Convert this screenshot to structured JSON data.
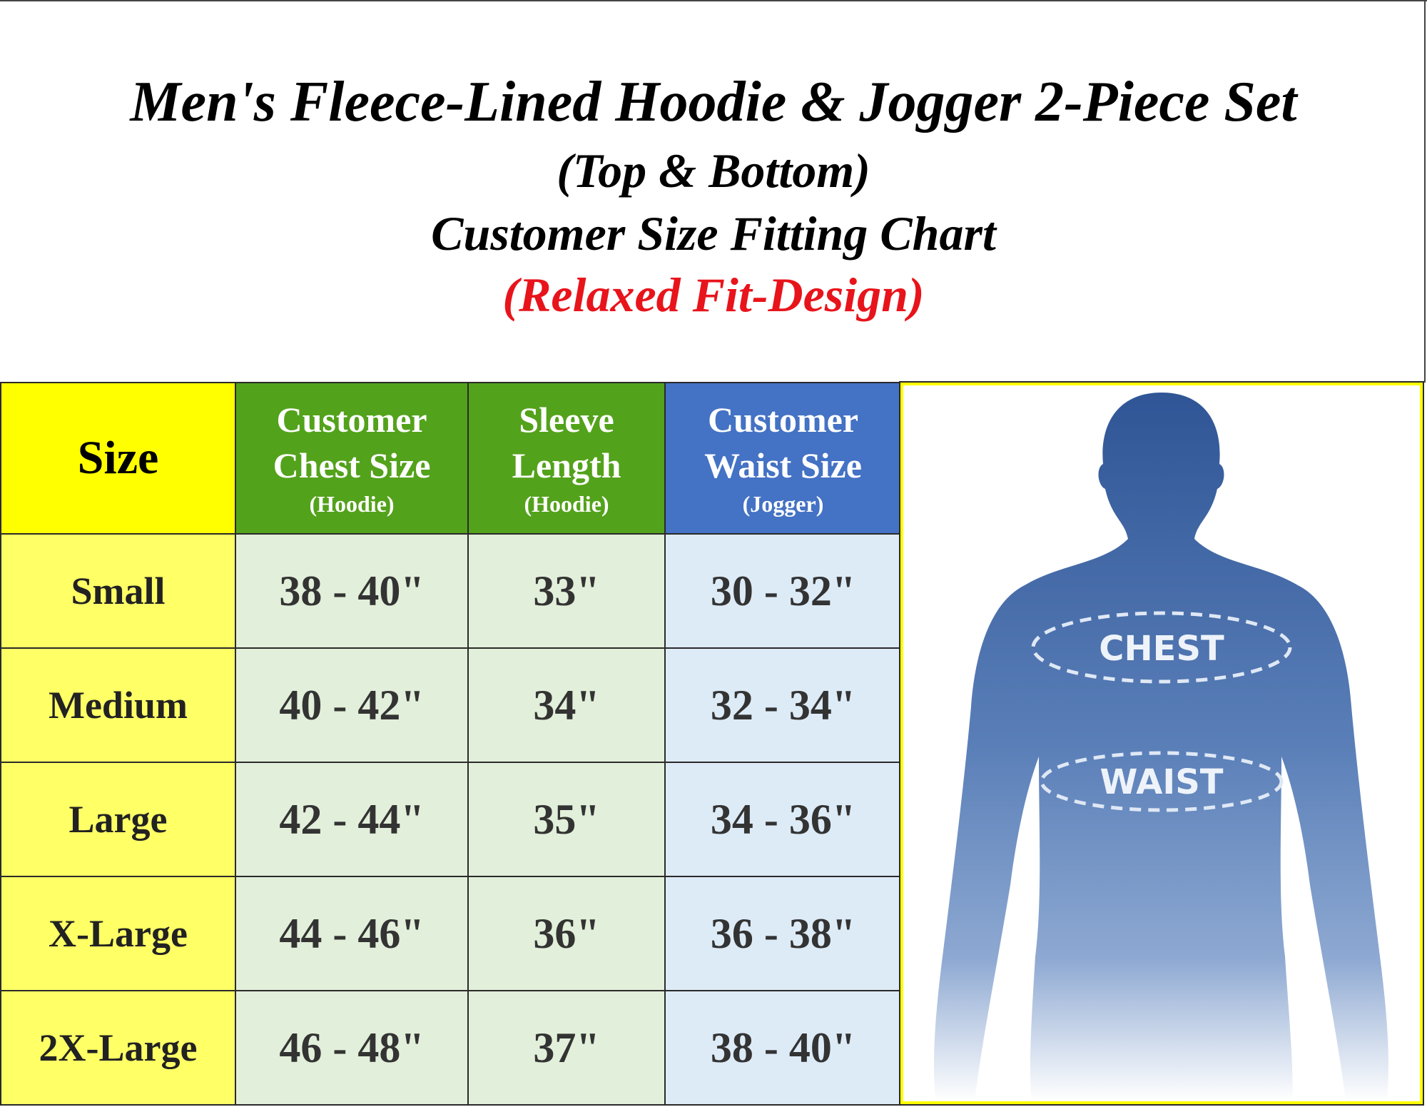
{
  "title": {
    "line1": "Men's Fleece-Lined Hoodie & Jogger 2-Piece Set",
    "line2": "(Top & Bottom)",
    "line3": "Customer Size Fitting Chart",
    "line4": "(Relaxed Fit-Design)"
  },
  "table": {
    "headers": [
      {
        "main": "Size",
        "sub": ""
      },
      {
        "main1": "Customer",
        "main2": "Chest Size",
        "sub": "(Hoodie)"
      },
      {
        "main1": "Sleeve",
        "main2": "Length",
        "sub": "(Hoodie)"
      },
      {
        "main1": "Customer",
        "main2": "Waist Size",
        "sub": "(Jogger)"
      }
    ],
    "rows": [
      [
        "Small",
        "38 - 40\"",
        "33\"",
        "30 - 32\""
      ],
      [
        "Medium",
        "40 - 42\"",
        "34\"",
        "32 - 34\""
      ],
      [
        "Large",
        "42 - 44\"",
        "35\"",
        "34 - 36\""
      ],
      [
        "X-Large",
        "44 - 46\"",
        "36\"",
        "36 - 38\""
      ],
      [
        "2X-Large",
        "46 - 48\"",
        "37\"",
        "38 - 40\""
      ]
    ]
  },
  "figure": {
    "chest_label": "CHEST",
    "waist_label": "WAIST"
  },
  "colors": {
    "size_header": "#ffff00",
    "green_header": "#53a21b",
    "blue_header": "#4472c4",
    "subtitle_red": "#e8141b"
  }
}
